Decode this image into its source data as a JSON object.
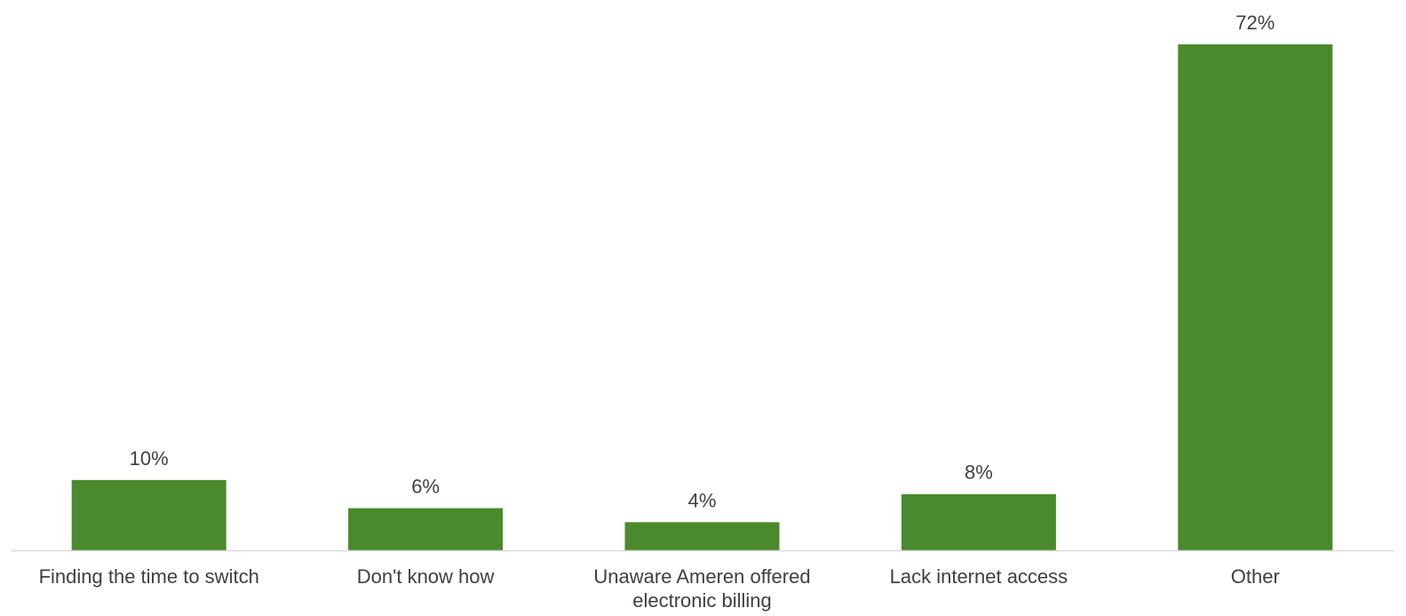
{
  "chart_data": {
    "type": "bar",
    "categories": [
      [
        "Finding the time to switch"
      ],
      [
        "Don't know how"
      ],
      [
        "Unaware Ameren offered",
        "electronic billing"
      ],
      [
        "Lack internet access"
      ],
      [
        "Other"
      ]
    ],
    "values": [
      10,
      6,
      4,
      8,
      72
    ],
    "data_labels": [
      "10%",
      "6%",
      "4%",
      "8%",
      "72%"
    ],
    "value_unit": "%",
    "ylim": [
      0,
      72
    ],
    "grid": false,
    "legend": "none",
    "colors": {
      "bar": "#4a8a2c",
      "axis": "#d9d9d9",
      "text": "#404040"
    }
  }
}
